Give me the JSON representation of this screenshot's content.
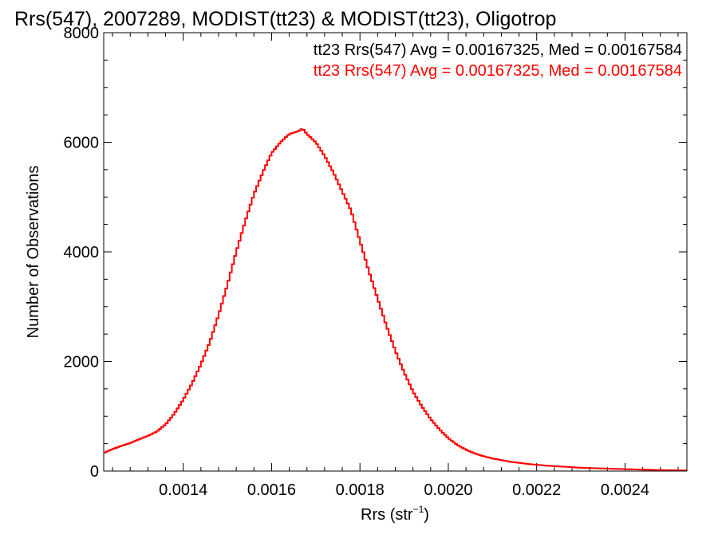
{
  "chart_data": {
    "type": "line",
    "title": "Rrs(547), 2007289, MODIST(tt23) & MODIST(tt23), Oligotrop",
    "xlabel_main": "Rrs (str",
    "xlabel_sup": "−1",
    "xlabel_close": ")",
    "ylabel": "Number of Observations",
    "xlim": [
      0.00122,
      0.00254
    ],
    "ylim": [
      0,
      8000
    ],
    "xticks": [
      0.0014,
      0.0016,
      0.0018,
      0.002,
      0.0022,
      0.0024
    ],
    "xtick_labels": [
      "0.0014",
      "0.0016",
      "0.0018",
      "0.0020",
      "0.0022",
      "0.0024"
    ],
    "yticks": [
      0,
      2000,
      4000,
      6000,
      8000
    ],
    "ytick_labels": [
      "0",
      "2000",
      "4000",
      "6000",
      "8000"
    ],
    "legend_position": "top-right",
    "legend": [
      {
        "text": "tt23 Rrs(547) Avg = 0.00167325, Med = 0.00167584",
        "color": "#000000"
      },
      {
        "text": "tt23 Rrs(547) Avg = 0.00167325, Med = 0.00167584",
        "color": "#ff0000"
      }
    ],
    "series": [
      {
        "color": "#ff0000",
        "x": [
          0.00122,
          0.00124,
          0.00126,
          0.00128,
          0.0013,
          0.00132,
          0.00134,
          0.00136,
          0.00138,
          0.0014,
          0.00142,
          0.00144,
          0.00146,
          0.00148,
          0.0015,
          0.00152,
          0.00154,
          0.00156,
          0.00158,
          0.0016,
          0.00162,
          0.00164,
          0.00166,
          0.00167,
          0.00168,
          0.0017,
          0.00172,
          0.00174,
          0.00176,
          0.00178,
          0.0018,
          0.00182,
          0.00184,
          0.00186,
          0.00188,
          0.0019,
          0.00192,
          0.00194,
          0.00196,
          0.00198,
          0.002,
          0.00202,
          0.00204,
          0.00206,
          0.00208,
          0.0021,
          0.00214,
          0.00218,
          0.00222,
          0.00226,
          0.0023,
          0.00234,
          0.00238,
          0.00242,
          0.00246,
          0.0025,
          0.00254
        ],
        "y": [
          330,
          400,
          460,
          510,
          580,
          640,
          720,
          850,
          1050,
          1300,
          1600,
          1950,
          2350,
          2850,
          3400,
          4000,
          4550,
          5050,
          5450,
          5800,
          6000,
          6150,
          6200,
          6250,
          6150,
          6000,
          5750,
          5450,
          5100,
          4750,
          4200,
          3650,
          3150,
          2650,
          2200,
          1800,
          1450,
          1180,
          950,
          760,
          600,
          480,
          390,
          320,
          270,
          230,
          170,
          130,
          100,
          80,
          60,
          50,
          40,
          30,
          22,
          15,
          10
        ]
      }
    ]
  }
}
